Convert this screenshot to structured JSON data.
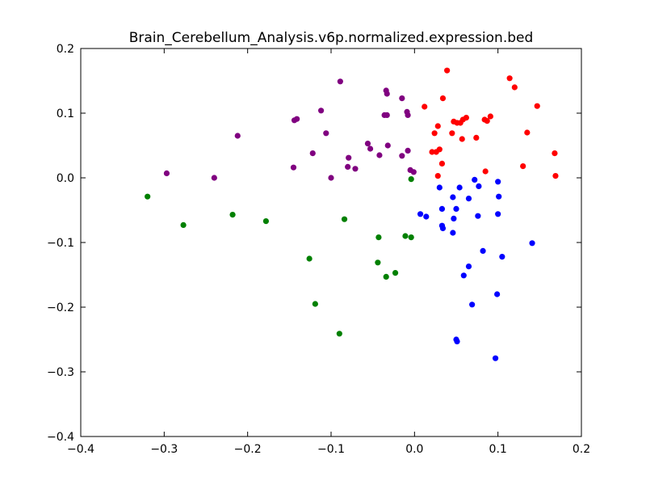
{
  "chart_data": {
    "type": "scatter",
    "title": "Brain_Cerebellum_Analysis.v6p.normalized.expression.bed",
    "xlabel": "",
    "ylabel": "",
    "xlim": [
      -0.4,
      0.2
    ],
    "ylim": [
      -0.4,
      0.2
    ],
    "xticks": [
      -0.4,
      -0.3,
      -0.2,
      -0.1,
      0.0,
      0.1,
      0.2
    ],
    "yticks": [
      -0.4,
      -0.3,
      -0.2,
      -0.1,
      0.0,
      0.1,
      0.2
    ],
    "xtick_labels": [
      "−0.4",
      "−0.3",
      "−0.2",
      "−0.1",
      "0.0",
      "0.1",
      "0.2"
    ],
    "ytick_labels": [
      "−0.4",
      "−0.3",
      "−0.2",
      "−0.1",
      "0.0",
      "0.1",
      "0.2"
    ],
    "grid": false,
    "series": [
      {
        "color": "#ff0000",
        "points": [
          [
            0.039,
            0.166
          ],
          [
            0.114,
            0.154
          ],
          [
            0.12,
            0.14
          ],
          [
            0.147,
            0.111
          ],
          [
            0.012,
            0.11
          ],
          [
            0.034,
            0.123
          ],
          [
            0.028,
            0.08
          ],
          [
            0.024,
            0.069
          ],
          [
            0.045,
            0.069
          ],
          [
            0.047,
            0.087
          ],
          [
            0.051,
            0.085
          ],
          [
            0.055,
            0.085
          ],
          [
            0.058,
            0.09
          ],
          [
            0.062,
            0.093
          ],
          [
            0.084,
            0.09
          ],
          [
            0.087,
            0.088
          ],
          [
            0.091,
            0.095
          ],
          [
            0.057,
            0.06
          ],
          [
            0.074,
            0.062
          ],
          [
            0.135,
            0.07
          ],
          [
            0.03,
            0.044
          ],
          [
            0.026,
            0.04
          ],
          [
            0.021,
            0.04
          ],
          [
            0.033,
            0.022
          ],
          [
            0.028,
            0.003
          ],
          [
            0.085,
            0.01
          ],
          [
            0.13,
            0.018
          ],
          [
            0.168,
            0.038
          ],
          [
            0.169,
            0.003
          ]
        ]
      },
      {
        "color": "#800080",
        "points": [
          [
            -0.089,
            0.149
          ],
          [
            -0.034,
            0.135
          ],
          [
            -0.033,
            0.13
          ],
          [
            -0.036,
            0.097
          ],
          [
            -0.033,
            0.097
          ],
          [
            -0.015,
            0.123
          ],
          [
            -0.009,
            0.102
          ],
          [
            -0.008,
            0.097
          ],
          [
            -0.112,
            0.104
          ],
          [
            -0.144,
            0.089
          ],
          [
            -0.141,
            0.091
          ],
          [
            -0.106,
            0.069
          ],
          [
            -0.212,
            0.065
          ],
          [
            -0.122,
            0.038
          ],
          [
            -0.056,
            0.053
          ],
          [
            -0.053,
            0.045
          ],
          [
            -0.042,
            0.035
          ],
          [
            -0.032,
            0.05
          ],
          [
            -0.015,
            0.034
          ],
          [
            -0.008,
            0.042
          ],
          [
            -0.079,
            0.031
          ],
          [
            -0.08,
            0.017
          ],
          [
            -0.071,
            0.014
          ],
          [
            -0.145,
            0.016
          ],
          [
            -0.297,
            0.007
          ],
          [
            -0.24,
            0.0
          ],
          [
            -0.1,
            0.0
          ],
          [
            -0.005,
            0.012
          ],
          [
            -0.001,
            0.009
          ]
        ]
      },
      {
        "color": "#0000ff",
        "points": [
          [
            0.072,
            -0.003
          ],
          [
            0.1,
            -0.006
          ],
          [
            0.03,
            -0.015
          ],
          [
            0.054,
            -0.015
          ],
          [
            0.077,
            -0.013
          ],
          [
            0.046,
            -0.03
          ],
          [
            0.065,
            -0.032
          ],
          [
            0.101,
            -0.029
          ],
          [
            0.033,
            -0.048
          ],
          [
            0.05,
            -0.048
          ],
          [
            0.007,
            -0.056
          ],
          [
            0.014,
            -0.06
          ],
          [
            0.047,
            -0.063
          ],
          [
            0.076,
            -0.059
          ],
          [
            0.1,
            -0.056
          ],
          [
            0.033,
            -0.074
          ],
          [
            0.034,
            -0.078
          ],
          [
            0.046,
            -0.085
          ],
          [
            0.141,
            -0.101
          ],
          [
            0.082,
            -0.113
          ],
          [
            0.105,
            -0.122
          ],
          [
            0.065,
            -0.137
          ],
          [
            0.059,
            -0.151
          ],
          [
            0.069,
            -0.196
          ],
          [
            0.099,
            -0.18
          ],
          [
            0.05,
            -0.25
          ],
          [
            0.051,
            -0.253
          ],
          [
            0.097,
            -0.279
          ]
        ]
      },
      {
        "color": "#008000",
        "points": [
          [
            -0.004,
            -0.002
          ],
          [
            -0.32,
            -0.029
          ],
          [
            -0.277,
            -0.073
          ],
          [
            -0.218,
            -0.057
          ],
          [
            -0.178,
            -0.067
          ],
          [
            -0.084,
            -0.064
          ],
          [
            -0.043,
            -0.092
          ],
          [
            -0.011,
            -0.09
          ],
          [
            -0.004,
            -0.092
          ],
          [
            -0.126,
            -0.125
          ],
          [
            -0.044,
            -0.131
          ],
          [
            -0.034,
            -0.153
          ],
          [
            -0.023,
            -0.147
          ],
          [
            -0.119,
            -0.195
          ],
          [
            -0.09,
            -0.241
          ]
        ]
      }
    ]
  }
}
